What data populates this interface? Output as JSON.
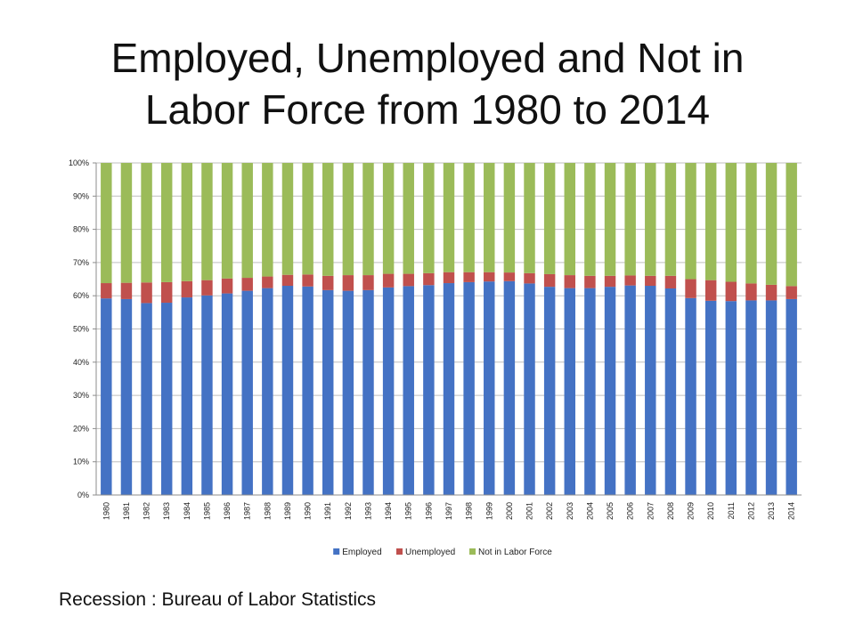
{
  "title": {
    "line1": "Employed, Unemployed and Not in",
    "line2": "Labor Force from 1980 to 2014"
  },
  "source": "Recession : Bureau of Labor Statistics",
  "chart_data": {
    "type": "bar",
    "stacked": true,
    "percent_stacked": true,
    "title": "Employed, Unemployed and Not in Labor Force from 1980 to 2014",
    "xlabel": "",
    "ylabel": "",
    "ylim": [
      0,
      100
    ],
    "yticks": [
      "0%",
      "10%",
      "20%",
      "30%",
      "40%",
      "50%",
      "60%",
      "70%",
      "80%",
      "90%",
      "100%"
    ],
    "grid": true,
    "legend_position": "bottom",
    "categories": [
      "1980",
      "1981",
      "1982",
      "1983",
      "1984",
      "1985",
      "1986",
      "1987",
      "1988",
      "1989",
      "1990",
      "1991",
      "1992",
      "1993",
      "1994",
      "1995",
      "1996",
      "1997",
      "1998",
      "1999",
      "2000",
      "2001",
      "2002",
      "2003",
      "2004",
      "2005",
      "2006",
      "2007",
      "2008",
      "2009",
      "2010",
      "2011",
      "2012",
      "2013",
      "2014"
    ],
    "series": [
      {
        "name": "Employed",
        "color": "#4472C4",
        "values": [
          59.2,
          59.0,
          57.8,
          57.9,
          59.5,
          60.1,
          60.7,
          61.5,
          62.3,
          63.0,
          62.8,
          61.7,
          61.5,
          61.7,
          62.5,
          62.9,
          63.2,
          63.8,
          64.1,
          64.3,
          64.4,
          63.7,
          62.7,
          62.3,
          62.3,
          62.7,
          63.1,
          63.0,
          62.2,
          59.3,
          58.5,
          58.4,
          58.6,
          58.6,
          59.0
        ]
      },
      {
        "name": "Unemployed",
        "color": "#C0504D",
        "values": [
          4.6,
          4.9,
          6.2,
          6.2,
          4.9,
          4.6,
          4.5,
          3.9,
          3.5,
          3.3,
          3.6,
          4.3,
          4.7,
          4.5,
          4.1,
          3.7,
          3.6,
          3.3,
          3.0,
          2.8,
          2.6,
          3.1,
          3.8,
          3.9,
          3.7,
          3.3,
          3.0,
          3.0,
          3.8,
          5.7,
          6.2,
          5.8,
          5.1,
          4.7,
          3.9
        ]
      },
      {
        "name": "Not in Labor Force",
        "color": "#9BBB59",
        "values": [
          36.2,
          36.1,
          36.0,
          35.9,
          35.6,
          35.3,
          34.8,
          34.6,
          34.2,
          33.7,
          33.6,
          34.0,
          33.8,
          33.8,
          33.4,
          33.4,
          33.2,
          32.9,
          32.9,
          32.9,
          33.0,
          33.2,
          33.5,
          33.8,
          34.0,
          34.0,
          33.9,
          34.0,
          34.0,
          35.0,
          35.3,
          35.8,
          36.3,
          36.7,
          37.1
        ]
      }
    ]
  }
}
